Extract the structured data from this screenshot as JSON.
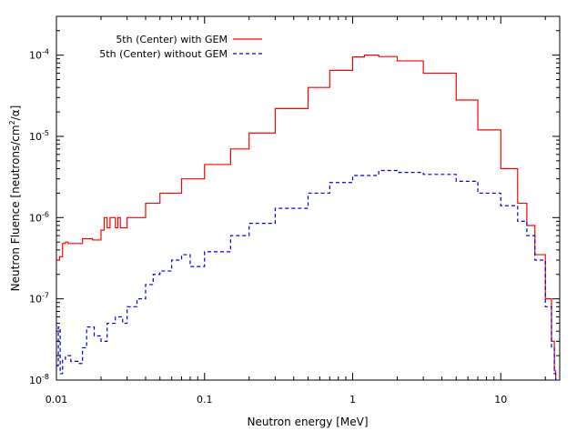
{
  "chart_data": {
    "type": "line",
    "title": "",
    "xlabel": "Neutron energy [MeV]",
    "ylabel_parts": {
      "pre": "Neutron Fluence [neutrons/cm",
      "sup": "2",
      "post": "/α]"
    },
    "xscale": "log",
    "yscale": "log",
    "xlim": [
      0.01,
      25
    ],
    "ylim": [
      1e-08,
      0.0003
    ],
    "grid": false,
    "legend_position": "top-left",
    "x_ticks": [
      {
        "value": 0.01,
        "label": "0.01"
      },
      {
        "value": 0.1,
        "label": "0.1"
      },
      {
        "value": 1,
        "label": "1"
      },
      {
        "value": 10,
        "label": "10"
      }
    ],
    "y_ticks": [
      {
        "value": 1e-08,
        "base": "10",
        "exp": "-8"
      },
      {
        "value": 1e-07,
        "base": "10",
        "exp": "-7"
      },
      {
        "value": 1e-06,
        "base": "10",
        "exp": "-6"
      },
      {
        "value": 1e-05,
        "base": "10",
        "exp": "-5"
      },
      {
        "value": 0.0001,
        "base": "10",
        "exp": "-4"
      }
    ],
    "series": [
      {
        "name": "5th (Center) with GEM",
        "color": "#ff0000",
        "dash": "solid",
        "x": [
          0.01,
          0.0105,
          0.011,
          0.0115,
          0.012,
          0.015,
          0.0175,
          0.02,
          0.021,
          0.022,
          0.023,
          0.025,
          0.026,
          0.027,
          0.03,
          0.04,
          0.05,
          0.07,
          0.1,
          0.15,
          0.2,
          0.3,
          0.5,
          0.7,
          1.0,
          1.2,
          1.5,
          2.0,
          3.0,
          5.0,
          7.0,
          10.0,
          13.0,
          15.0,
          17.0,
          20.0,
          22.0,
          23.0,
          23.5
        ],
        "y": [
          3e-07,
          3.3e-07,
          4.8e-07,
          5e-07,
          4.8e-07,
          5.5e-07,
          5.3e-07,
          7e-07,
          1e-06,
          7.5e-07,
          1e-06,
          7.5e-07,
          1e-06,
          7.5e-07,
          1e-06,
          1.5e-06,
          2e-06,
          3e-06,
          4.5e-06,
          7e-06,
          1.1e-05,
          2.2e-05,
          4e-05,
          6.5e-05,
          9.5e-05,
          0.0001,
          9.6e-05,
          8.5e-05,
          6e-05,
          2.8e-05,
          1.2e-05,
          4e-06,
          1.5e-06,
          8e-07,
          3.5e-07,
          1e-07,
          3e-08,
          1.3e-08,
          1e-08
        ]
      },
      {
        "name": "5th (Center) without GEM",
        "color": "#0000dd",
        "dash": "dashed",
        "x": [
          0.01,
          0.0103,
          0.0106,
          0.011,
          0.0115,
          0.0125,
          0.014,
          0.015,
          0.016,
          0.018,
          0.02,
          0.022,
          0.025,
          0.028,
          0.03,
          0.035,
          0.04,
          0.045,
          0.05,
          0.06,
          0.07,
          0.08,
          0.1,
          0.15,
          0.2,
          0.3,
          0.5,
          0.7,
          1.0,
          1.5,
          2.0,
          3.0,
          5.0,
          7.0,
          10.0,
          13.0,
          15.0,
          17.0,
          20.0,
          22.0,
          23.0,
          23.5
        ],
        "y": [
          1.5e-08,
          4.5e-08,
          1.2e-08,
          1.8e-08,
          2e-08,
          1.7e-08,
          1.6e-08,
          2.5e-08,
          4.5e-08,
          3.5e-08,
          3e-08,
          5e-08,
          6e-08,
          5e-08,
          8e-08,
          1e-07,
          1.5e-07,
          2e-07,
          2.2e-07,
          3e-07,
          3.5e-07,
          2.5e-07,
          3.8e-07,
          6e-07,
          8.5e-07,
          1.3e-06,
          2e-06,
          2.7e-06,
          3.3e-06,
          3.8e-06,
          3.6e-06,
          3.4e-06,
          2.8e-06,
          2e-06,
          1.4e-06,
          9e-07,
          6e-07,
          3e-07,
          8e-08,
          2.5e-08,
          1.2e-08,
          1e-08
        ]
      }
    ]
  }
}
